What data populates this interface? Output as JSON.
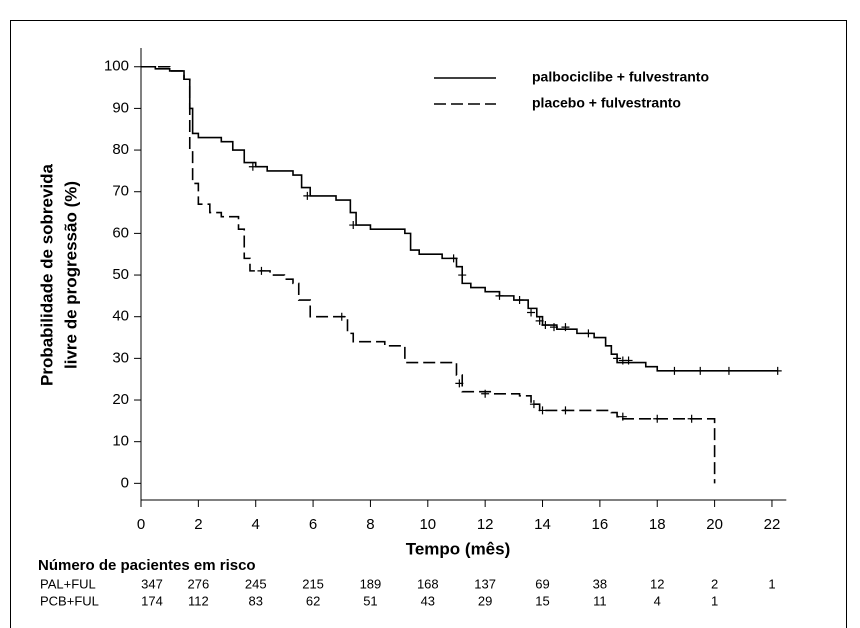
{
  "chart_data": {
    "type": "line",
    "step": "post",
    "xlabel": "Tempo (mês)",
    "ylabel": [
      "Probabilidade de sobrevida",
      "livre de progressão (%)"
    ],
    "xlim": [
      0,
      22.5
    ],
    "ylim": [
      -4,
      104.5
    ],
    "xticks": [
      0,
      2,
      4,
      6,
      8,
      10,
      12,
      14,
      16,
      18,
      20,
      22
    ],
    "yticks": [
      0,
      10,
      20,
      30,
      40,
      50,
      60,
      70,
      80,
      90,
      100
    ],
    "legend": "top-right",
    "series": [
      {
        "name": "palbociclibe + fulvestranto",
        "color": "#000000",
        "dash": "solid",
        "x": [
          0,
          0.5,
          1,
          1.5,
          1.7,
          1.8,
          2.0,
          2.8,
          3.2,
          3.6,
          4.0,
          4.4,
          5.3,
          5.6,
          5.9,
          6.8,
          7.3,
          7.5,
          8.0,
          9.2,
          9.4,
          9.7,
          10.5,
          11.0,
          11.2,
          11.5,
          12.0,
          12.5,
          13.0,
          13.5,
          13.8,
          14.0,
          14.5,
          15.2,
          15.8,
          16.2,
          16.4,
          16.6,
          17.6,
          18.0,
          22.2
        ],
        "values": [
          100,
          99.5,
          99,
          97,
          90,
          84,
          83,
          82,
          80,
          77,
          76,
          75,
          74,
          71,
          69,
          68,
          65,
          62,
          61,
          60,
          56,
          55,
          54,
          52,
          48,
          47,
          46,
          45,
          44,
          42,
          40,
          38,
          37,
          36,
          35,
          33,
          31,
          29,
          28,
          27,
          27
        ],
        "censor_x": [
          3.9,
          5.8,
          7.4,
          10.9,
          11.2,
          12.5,
          13.2,
          13.6,
          13.9,
          14.1,
          14.4,
          14.8,
          15.6,
          16.6,
          16.8,
          17.0,
          18.6,
          19.5,
          20.5,
          22.2
        ],
        "censor_y": [
          76,
          69,
          62,
          54,
          50,
          45,
          44,
          41,
          39,
          38,
          37.5,
          37.5,
          36,
          30,
          29.5,
          29.5,
          27,
          27,
          27,
          27
        ]
      },
      {
        "name": "placebo + fulvestranto",
        "color": "#000000",
        "dash": "dashed",
        "x": [
          0,
          1.0,
          1.5,
          1.7,
          1.8,
          2.0,
          2.4,
          2.8,
          3.4,
          3.6,
          3.8,
          4.5,
          5.0,
          5.3,
          5.5,
          5.9,
          7.0,
          7.2,
          7.4,
          8.5,
          9.2,
          10.8,
          11.0,
          11.2,
          12.3,
          13.2,
          13.6,
          13.9,
          16.4,
          16.6,
          16.8,
          20.0
        ],
        "values": [
          100,
          99,
          97,
          80,
          72,
          67,
          65,
          64,
          61,
          54,
          51,
          50,
          49,
          48,
          44,
          40,
          40,
          36,
          34,
          33,
          29,
          29,
          26,
          22,
          21.5,
          21,
          19,
          17.5,
          17,
          16,
          15.5,
          0
        ],
        "censor_x": [
          4.2,
          7.0,
          11.1,
          12.0,
          13.7,
          14.0,
          14.8,
          16.8,
          18,
          19.2
        ],
        "censor_y": [
          51,
          40,
          24,
          21.5,
          19,
          17.5,
          17.5,
          16,
          15.5,
          15.5
        ]
      }
    ],
    "risk_table": {
      "title": "Número de pacientes em risco",
      "rows": [
        {
          "label": "PAL+FUL",
          "values": [
            347,
            276,
            245,
            215,
            189,
            168,
            137,
            69,
            38,
            12,
            2,
            1
          ]
        },
        {
          "label": "PCB+FUL",
          "values": [
            174,
            112,
            83,
            62,
            51,
            43,
            29,
            15,
            11,
            4,
            1
          ]
        }
      ]
    }
  }
}
